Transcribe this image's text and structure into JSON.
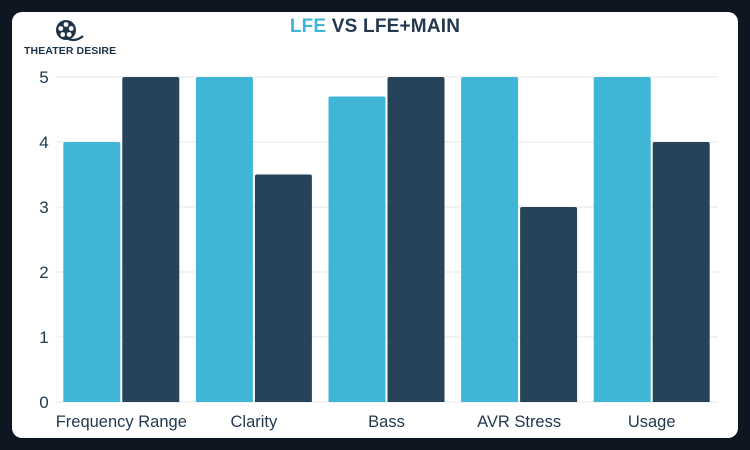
{
  "brand": {
    "logo_text": "THEATER DESIRE",
    "logo_icon": "film-reel-icon"
  },
  "title": {
    "part1": "LFE",
    "part2": " VS ",
    "part3": "LFE+MAIN"
  },
  "colors": {
    "background": "#0d1621",
    "card": "#ffffff",
    "accent": "#3fb6d6",
    "dark": "#26435a",
    "text": "#24394f",
    "grid": "#e7e7e7"
  },
  "chart_data": {
    "type": "bar",
    "title": "LFE VS LFE+MAIN",
    "xlabel": "",
    "ylabel": "",
    "categories": [
      "Frequency Range",
      "Clarity",
      "Bass",
      "AVR Stress",
      "Usage"
    ],
    "series": [
      {
        "name": "LFE",
        "color": "#3fb6d6",
        "values": [
          4,
          5,
          4.7,
          5,
          5
        ]
      },
      {
        "name": "LFE+MAIN",
        "color": "#26435a",
        "values": [
          5,
          3.5,
          5,
          3,
          4
        ]
      }
    ],
    "ylim": [
      0,
      5
    ],
    "yticks": [
      0,
      1,
      2,
      3,
      4,
      5
    ],
    "grid": true,
    "legend": "none"
  }
}
